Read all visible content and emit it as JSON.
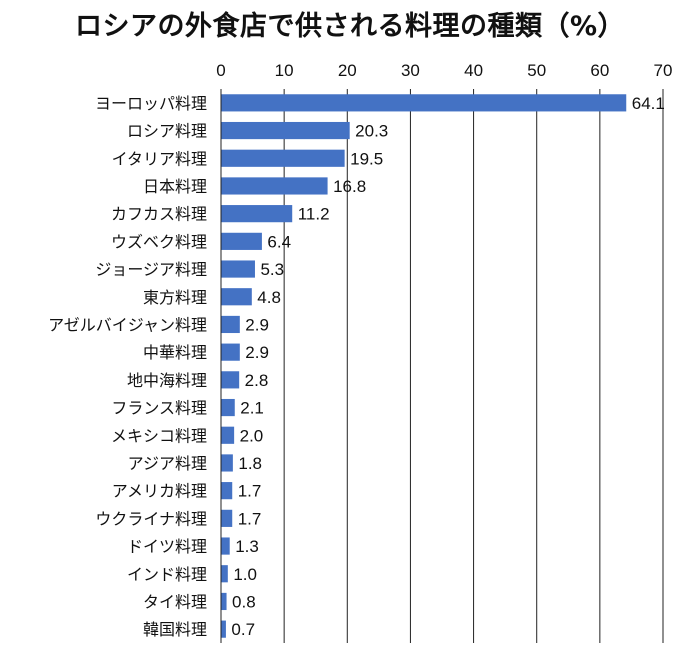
{
  "chart_data": {
    "type": "bar",
    "orientation": "horizontal",
    "title": "ロシアの外食店で供される料理の種類（%）",
    "categories": [
      "ヨーロッパ料理",
      "ロシア料理",
      "イタリア料理",
      "日本料理",
      "カフカス料理",
      "ウズベク料理",
      "ジョージア料理",
      "東方料理",
      "アゼルバイジャン料理",
      "中華料理",
      "地中海料理",
      "フランス料理",
      "メキシコ料理",
      "アジア料理",
      "アメリカ料理",
      "ウクライナ料理",
      "ドイツ料理",
      "インド料理",
      "タイ料理",
      "韓国料理"
    ],
    "values": [
      64.1,
      20.3,
      19.5,
      16.8,
      11.2,
      6.4,
      5.3,
      4.8,
      2.9,
      2.9,
      2.8,
      2.1,
      2.0,
      1.8,
      1.7,
      1.7,
      1.3,
      1.0,
      0.8,
      0.7
    ],
    "value_labels": [
      "64.1",
      "20.3",
      "19.5",
      "16.8",
      "11.2",
      "6.4",
      "5.3",
      "4.8",
      "2.9",
      "2.9",
      "2.8",
      "2.1",
      "2.0",
      "1.8",
      "1.7",
      "1.7",
      "1.3",
      "1.0",
      "0.8",
      "0.7"
    ],
    "xlim": [
      0,
      70
    ],
    "xticks": [
      0,
      10,
      20,
      30,
      40,
      50,
      60,
      70
    ],
    "xtick_labels": [
      "0",
      "10",
      "20",
      "30",
      "40",
      "50",
      "60",
      "70"
    ],
    "xaxis_position": "top",
    "grid": true,
    "legend": "none",
    "bar_color": "#4472C4",
    "grid_color": "#222222"
  }
}
